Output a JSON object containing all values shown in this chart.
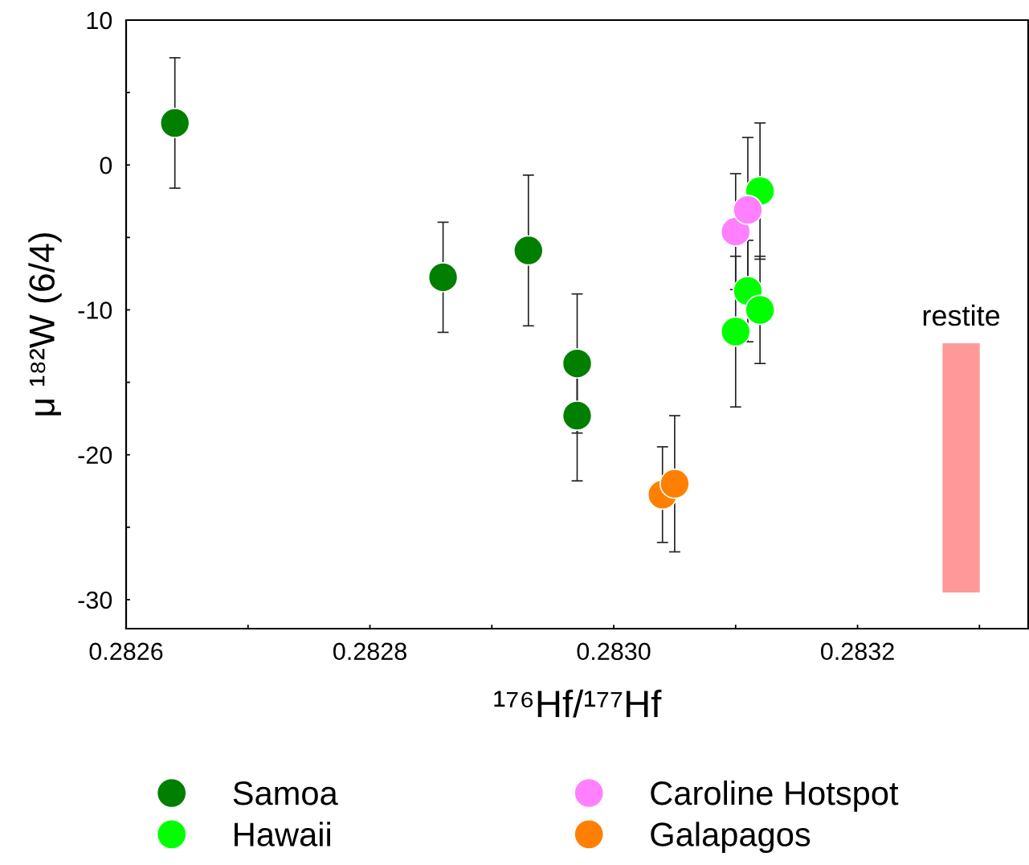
{
  "chart_data": {
    "type": "scatter",
    "xlabel": "¹⁷⁶Hf/¹⁷⁷Hf",
    "ylabel": "μ ¹⁸²W (6/4)",
    "xlim": [
      0.2826,
      0.28334
    ],
    "ylim": [
      -32,
      10
    ],
    "xticks": [
      0.2826,
      {
        "value": 0.2827,
        "label": null
      },
      {
        "value": 0.2828,
        "label": "0.2828"
      },
      {
        "value": 0.2829,
        "label": null
      },
      {
        "value": 0.283,
        "label": "0.2830"
      },
      {
        "value": 0.2831,
        "label": null
      },
      0.2832,
      {
        "value": 0.2833,
        "label": null
      }
    ],
    "yticks": [
      10,
      {
        "value": 5,
        "label": null
      },
      0,
      {
        "value": -5,
        "label": null
      },
      -10,
      {
        "value": -15,
        "label": null
      },
      -20,
      {
        "value": -25,
        "label": null
      },
      -30
    ],
    "grid": false,
    "legend": "bottom",
    "marker": "circle",
    "series": [
      {
        "name": "Samoa",
        "color": "#007f00",
        "x": [
          0.28264,
          0.28286,
          0.28293,
          0.28297,
          0.28297
        ],
        "values": [
          2.9,
          -7.75,
          -5.9,
          -13.7,
          -17.3
        ],
        "errors": [
          4.5,
          3.8,
          5.2,
          4.8,
          4.5
        ]
      },
      {
        "name": "Hawaii",
        "color": "#00ff00",
        "x": [
          0.2831,
          0.28311,
          0.28312,
          0.28312
        ],
        "values": [
          -11.5,
          -8.7,
          -1.8,
          -10.0
        ],
        "errors": [
          5.2,
          3.5,
          4.7,
          3.7
        ]
      },
      {
        "name": "Caroline Hotspot",
        "color": "#ff80ff",
        "x": [
          0.2831,
          0.28311
        ],
        "values": [
          -4.6,
          -3.1
        ],
        "errors": [
          4.0,
          5.0
        ]
      },
      {
        "name": "Galapagos",
        "color": "#ff8000",
        "x": [
          0.28304,
          0.28305
        ],
        "values": [
          -22.75,
          -22.0
        ],
        "errors": [
          3.3,
          4.7
        ]
      },
      {
        "name": "restite",
        "type": "bar",
        "color": "#ff9999",
        "x": [
          0.283285
        ],
        "base": [
          -29.5
        ],
        "values": [
          17.2
        ]
      }
    ]
  }
}
